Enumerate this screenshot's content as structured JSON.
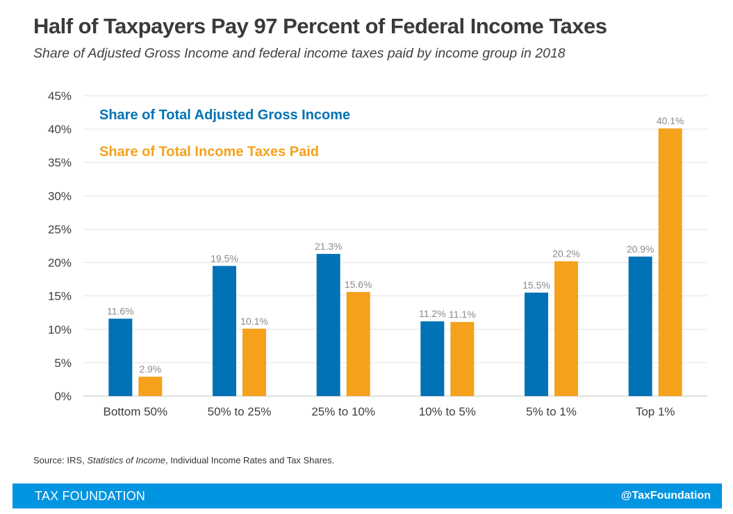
{
  "header": {
    "title": "Half of Taxpayers Pay 97 Percent of Federal Income Taxes",
    "subtitle": "Share of Adjusted Gross Income and federal income taxes paid by income group in 2018"
  },
  "chart_data": {
    "type": "bar",
    "categories": [
      "Bottom 50%",
      "50% to 25%",
      "25% to 10%",
      "10% to 5%",
      "5% to 1%",
      "Top 1%"
    ],
    "series": [
      {
        "name": "Share of Total Adjusted Gross Income",
        "color": "#0072b5",
        "values": [
          11.6,
          19.5,
          21.3,
          11.2,
          15.5,
          20.9
        ],
        "labels": [
          "11.6%",
          "19.5%",
          "21.3%",
          "11.2%",
          "15.5%",
          "20.9%"
        ]
      },
      {
        "name": "Share of Total Income Taxes Paid",
        "color": "#f5a11c",
        "values": [
          2.9,
          10.1,
          15.6,
          11.1,
          20.2,
          40.1
        ],
        "labels": [
          "2.9%",
          "10.1%",
          "15.6%",
          "11.1%",
          "20.2%",
          "40.1%"
        ]
      }
    ],
    "yticks": [
      0,
      5,
      10,
      15,
      20,
      25,
      30,
      35,
      40,
      45
    ],
    "ytick_labels": [
      "0%",
      "5%",
      "10%",
      "15%",
      "20%",
      "25%",
      "30%",
      "35%",
      "40%",
      "45%"
    ],
    "ylim": [
      0,
      45
    ],
    "grid": true,
    "legend_position": "top-left",
    "xlabel": "",
    "ylabel": ""
  },
  "source": {
    "prefix": "Source: IRS, ",
    "italic": "Statistics of Income",
    "suffix": ", Individual Income Rates and Tax Shares."
  },
  "footer": {
    "brand": "TAX FOUNDATION",
    "handle": "@TaxFoundation",
    "color": "#0094e1"
  }
}
